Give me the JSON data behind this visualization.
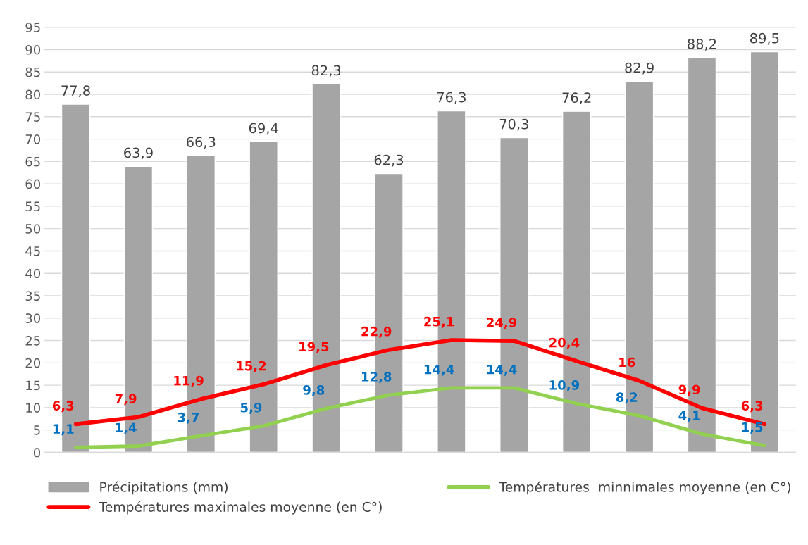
{
  "chart_data": {
    "type": "bar",
    "categories": [
      null,
      null,
      null,
      null,
      null,
      null,
      null,
      null,
      null,
      null,
      null,
      null
    ],
    "series": [
      {
        "name": "Précipitations (mm)",
        "color": "#a5a5a5",
        "values": [
          77.8,
          63.9,
          66.3,
          69.4,
          82.3,
          62.3,
          76.3,
          70.3,
          76.2,
          82.9,
          88.2,
          89.5
        ],
        "value_labels": [
          "77,8",
          "63,9",
          "66,3",
          "69,4",
          "82,3",
          "62,3",
          "76,3",
          "70,3",
          "76,2",
          "82,9",
          "88,2",
          "89,5"
        ]
      },
      {
        "name": "Températures  minnimales moyenne (en C°)",
        "type": "line",
        "color": "#92d050",
        "values": [
          1.1,
          1.4,
          3.7,
          5.9,
          9.8,
          12.8,
          14.4,
          14.4,
          10.9,
          8.2,
          4.1,
          1.5
        ],
        "value_labels": [
          "1,1",
          "1,4",
          "3,7",
          "5,9",
          "9,8",
          "12,8",
          "14,4",
          "14,4",
          "10,9",
          "8,2",
          "4,1",
          "1,5"
        ]
      },
      {
        "name": "Températures maximales moyenne (en C°)",
        "type": "line",
        "color": "#ff0000",
        "values": [
          6.3,
          7.9,
          11.9,
          15.2,
          19.5,
          22.9,
          25.1,
          24.9,
          20.4,
          16,
          9.9,
          6.3
        ],
        "value_labels": [
          "6,3",
          "7,9",
          "11,9",
          "15,2",
          "19,5",
          "22,9",
          "25,1",
          "24,9",
          "20,4",
          "16",
          "9,9",
          "6,3"
        ]
      }
    ],
    "ylim": [
      0,
      95
    ],
    "yticks": [
      0,
      5,
      10,
      15,
      20,
      25,
      30,
      35,
      40,
      45,
      50,
      55,
      60,
      65,
      70,
      75,
      80,
      85,
      90,
      95
    ],
    "grid": "y",
    "legend": "bottom"
  }
}
